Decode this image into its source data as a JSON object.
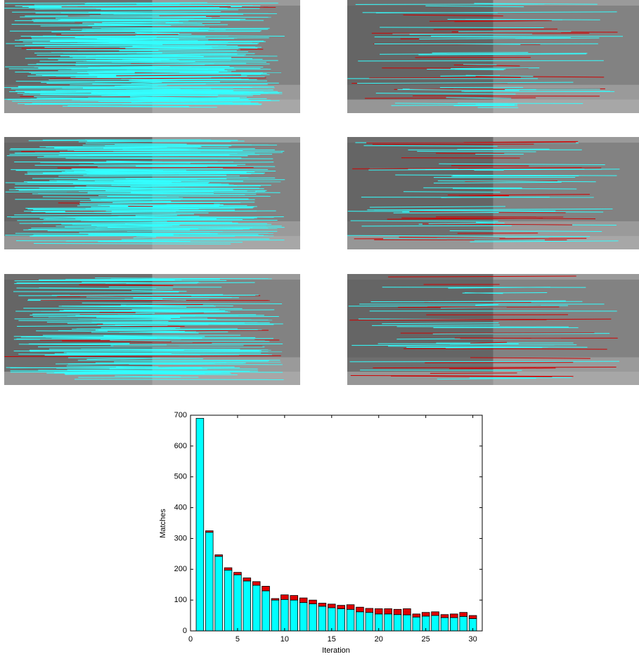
{
  "chart_data": {
    "type": "bar",
    "xlabel": "Iteration",
    "ylabel": "Matches",
    "x": [
      1,
      2,
      3,
      4,
      5,
      6,
      7,
      8,
      9,
      10,
      11,
      12,
      13,
      14,
      15,
      16,
      17,
      18,
      19,
      20,
      21,
      22,
      23,
      24,
      25,
      26,
      27,
      28,
      29,
      30
    ],
    "series": [
      {
        "color": "#00ffff",
        "values": [
          690,
          320,
          242,
          197,
          182,
          162,
          148,
          130,
          100,
          102,
          100,
          92,
          88,
          80,
          75,
          72,
          70,
          62,
          60,
          55,
          55,
          53,
          52,
          45,
          48,
          50,
          43,
          43,
          47,
          40
        ]
      },
      {
        "color": "#e00000",
        "values": [
          0,
          5,
          5,
          8,
          8,
          10,
          12,
          15,
          5,
          15,
          15,
          15,
          12,
          10,
          12,
          11,
          15,
          15,
          13,
          17,
          17,
          17,
          20,
          10,
          12,
          12,
          10,
          12,
          13,
          10
        ]
      }
    ],
    "stacked": true,
    "xlim": [
      0,
      31
    ],
    "xticks": [
      0,
      5,
      10,
      15,
      20,
      25,
      30
    ],
    "ylim": [
      0,
      700
    ],
    "yticks": [
      0,
      100,
      200,
      300,
      400,
      500,
      600,
      700
    ]
  }
}
